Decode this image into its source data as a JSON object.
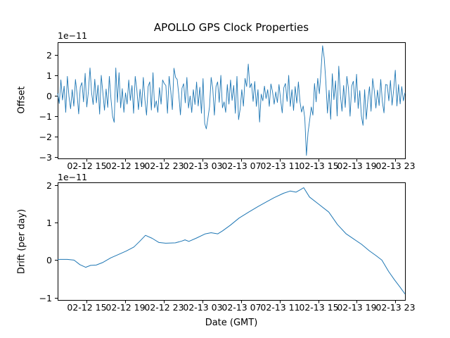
{
  "figure": {
    "title": "APOLLO GPS Clock Properties",
    "xlabel": "Date (GMT)",
    "line_color": "#1f77b4",
    "background": "#ffffff"
  },
  "chart_data": [
    {
      "type": "line",
      "title": "APOLLO GPS Clock Properties",
      "ylabel": "Offset",
      "y_scale_text": "1e−11",
      "grid": false,
      "legend": "none",
      "xlim_hours": [
        0,
        36
      ],
      "ylim": [
        -3.07,
        2.62
      ],
      "y_tick_values": [
        2,
        1,
        0,
        -1,
        -2,
        -3
      ],
      "y_tick_labels": [
        "2",
        "1",
        "0",
        "−1",
        "−2",
        "−3"
      ],
      "x_tick_hours": [
        3,
        7,
        11,
        15,
        19,
        23,
        27,
        31,
        35
      ],
      "x_tick_labels": [
        "02-12 15",
        "02-12 19",
        "02-12 23",
        "02-13 03",
        "02-13 07",
        "02-13 11",
        "02-13 15",
        "02-13 19",
        "02-13 23"
      ],
      "series": [
        {
          "name": "offset",
          "note": "noisy clock offset, units 1e-11; big dip -2.9 near 02-13 13:40, spike +2.45 near 02-13 15:30",
          "values": [
            0.13,
            -0.38,
            0.78,
            -0.21,
            0.47,
            -0.81,
            0.95,
            -0.04,
            -0.64,
            0.3,
            -0.51,
            0.8,
            0.09,
            -0.89,
            0.43,
            0.64,
            -0.3,
            1.1,
            -0.55,
            0.2,
            1.36,
            0.14,
            -0.43,
            0.81,
            -0.35,
            0.52,
            -0.9,
            1.0,
            0.15,
            -0.71,
            0.33,
            -0.57,
            0.95,
            -0.15,
            -1.0,
            -1.3,
            1.36,
            -0.32,
            1.13,
            -0.59,
            0.35,
            -0.81,
            0.14,
            -0.41,
            0.77,
            -0.23,
            0.5,
            -0.86,
            0.95,
            0.3,
            -0.68,
            0.32,
            -0.54,
            0.9,
            -0.2,
            -0.95,
            0.45,
            0.68,
            -0.7,
            1.13,
            -0.59,
            -0.25,
            -0.81,
            0.4,
            -0.41,
            0.77,
            0.6,
            0.5,
            -0.86,
            0.95,
            0.25,
            -0.68,
            1.35,
            0.9,
            0.8,
            0.04,
            -0.94,
            0.38,
            0.59,
            -0.35,
            0.9,
            -0.6,
            -0.01,
            -0.82,
            0.3,
            -0.43,
            0.67,
            -0.5,
            0.42,
            -0.86,
            0.84,
            -1.35,
            -1.62,
            -1.1,
            -0.54,
            0.9,
            0.35,
            -0.95,
            0.45,
            0.68,
            -0.32,
            1.0,
            -0.59,
            -0.3,
            -0.81,
            0.55,
            -0.41,
            0.77,
            -0.23,
            0.5,
            -0.86,
            0.95,
            -1.17,
            -0.64,
            0.3,
            -0.51,
            0.85,
            0.45,
            1.55,
            0.4,
            0.6,
            -0.28,
            0.7,
            -0.52,
            0.3,
            -1.29,
            0.08,
            -0.25,
            0.47,
            -0.14,
            0.3,
            -0.52,
            0.58,
            0.2,
            -0.41,
            0.19,
            -0.33,
            0.55,
            -0.2,
            -0.84,
            0.4,
            0.6,
            -0.28,
            1.0,
            -0.52,
            0.3,
            -0.72,
            0.45,
            -0.36,
            0.68,
            -0.3,
            -0.8,
            -0.5,
            -1.1,
            -2.92,
            -1.8,
            -1.2,
            -0.55,
            -0.95,
            0.6,
            -0.3,
            0.85,
            0.1,
            1.2,
            2.45,
            1.85,
            0.7,
            -0.85,
            0.27,
            -1.15,
            1.08,
            -0.19,
            0.73,
            -0.99,
            1.45,
            0.04,
            -0.76,
            0.5,
            -0.57,
            0.95,
            0.35,
            -1.0,
            0.48,
            0.71,
            -0.33,
            1.05,
            -0.62,
            0.25,
            -1.0,
            -1.45,
            0.3,
            -1.15,
            -0.2,
            0.44,
            -0.76,
            0.84,
            0.25,
            -0.6,
            0.28,
            -0.48,
            0.8,
            -0.3,
            -0.84,
            0.55,
            0.53,
            -0.25,
            0.75,
            -0.46,
            0.3,
            1.25,
            -0.5,
            0.55,
            -0.4,
            0.45,
            -0.25,
            0.15
          ]
        }
      ]
    },
    {
      "type": "line",
      "ylabel": "Drift (per day)",
      "xlabel": "Date (GMT)",
      "y_scale_text": "1e−11",
      "grid": false,
      "legend": "none",
      "xlim_hours": [
        0,
        36
      ],
      "ylim": [
        -1.06,
        2.07
      ],
      "y_tick_values": [
        2,
        1,
        0,
        -1
      ],
      "y_tick_labels": [
        "2",
        "1",
        "0",
        "−1"
      ],
      "x_tick_hours": [
        3,
        7,
        11,
        15,
        19,
        23,
        27,
        31,
        35
      ],
      "x_tick_labels": [
        "02-12 15",
        "02-12 19",
        "02-12 23",
        "02-13 03",
        "02-13 07",
        "02-13 11",
        "02-13 15",
        "02-13 19",
        "02-13 23"
      ],
      "series": [
        {
          "name": "drift",
          "note": "smooth drift per day, units 1e-11; peak 1.93 near 02-13 11:30, ends -0.9 at 02-13 24:00",
          "x_hours": [
            0,
            1,
            1.7,
            2.3,
            2.9,
            3.4,
            4,
            4.7,
            5.5,
            6.3,
            7.1,
            7.9,
            8.5,
            9.1,
            9.8,
            10.5,
            11.2,
            12.2,
            12.9,
            13.2,
            13.6,
            14.4,
            15.3,
            15.9,
            16.6,
            17.1,
            17.9,
            18.8,
            19.8,
            20.8,
            21.7,
            22.4,
            23.4,
            24.1,
            24.7,
            25.2,
            25.5,
            26.1,
            27,
            28.1,
            29,
            29.9,
            30.7,
            31.5,
            32.3,
            33,
            33.6,
            34.3,
            34.9,
            35.5,
            36
          ],
          "values": [
            0.02,
            0.02,
            0,
            -0.12,
            -0.19,
            -0.14,
            -0.13,
            -0.06,
            0.06,
            0.15,
            0.24,
            0.35,
            0.5,
            0.66,
            0.58,
            0.47,
            0.45,
            0.46,
            0.51,
            0.54,
            0.5,
            0.59,
            0.7,
            0.73,
            0.7,
            0.78,
            0.93,
            1.12,
            1.28,
            1.43,
            1.56,
            1.66,
            1.78,
            1.84,
            1.81,
            1.88,
            1.93,
            1.68,
            1.5,
            1.28,
            0.95,
            0.7,
            0.56,
            0.42,
            0.25,
            0.12,
            0,
            -0.3,
            -0.52,
            -0.72,
            -0.9
          ]
        }
      ]
    }
  ]
}
